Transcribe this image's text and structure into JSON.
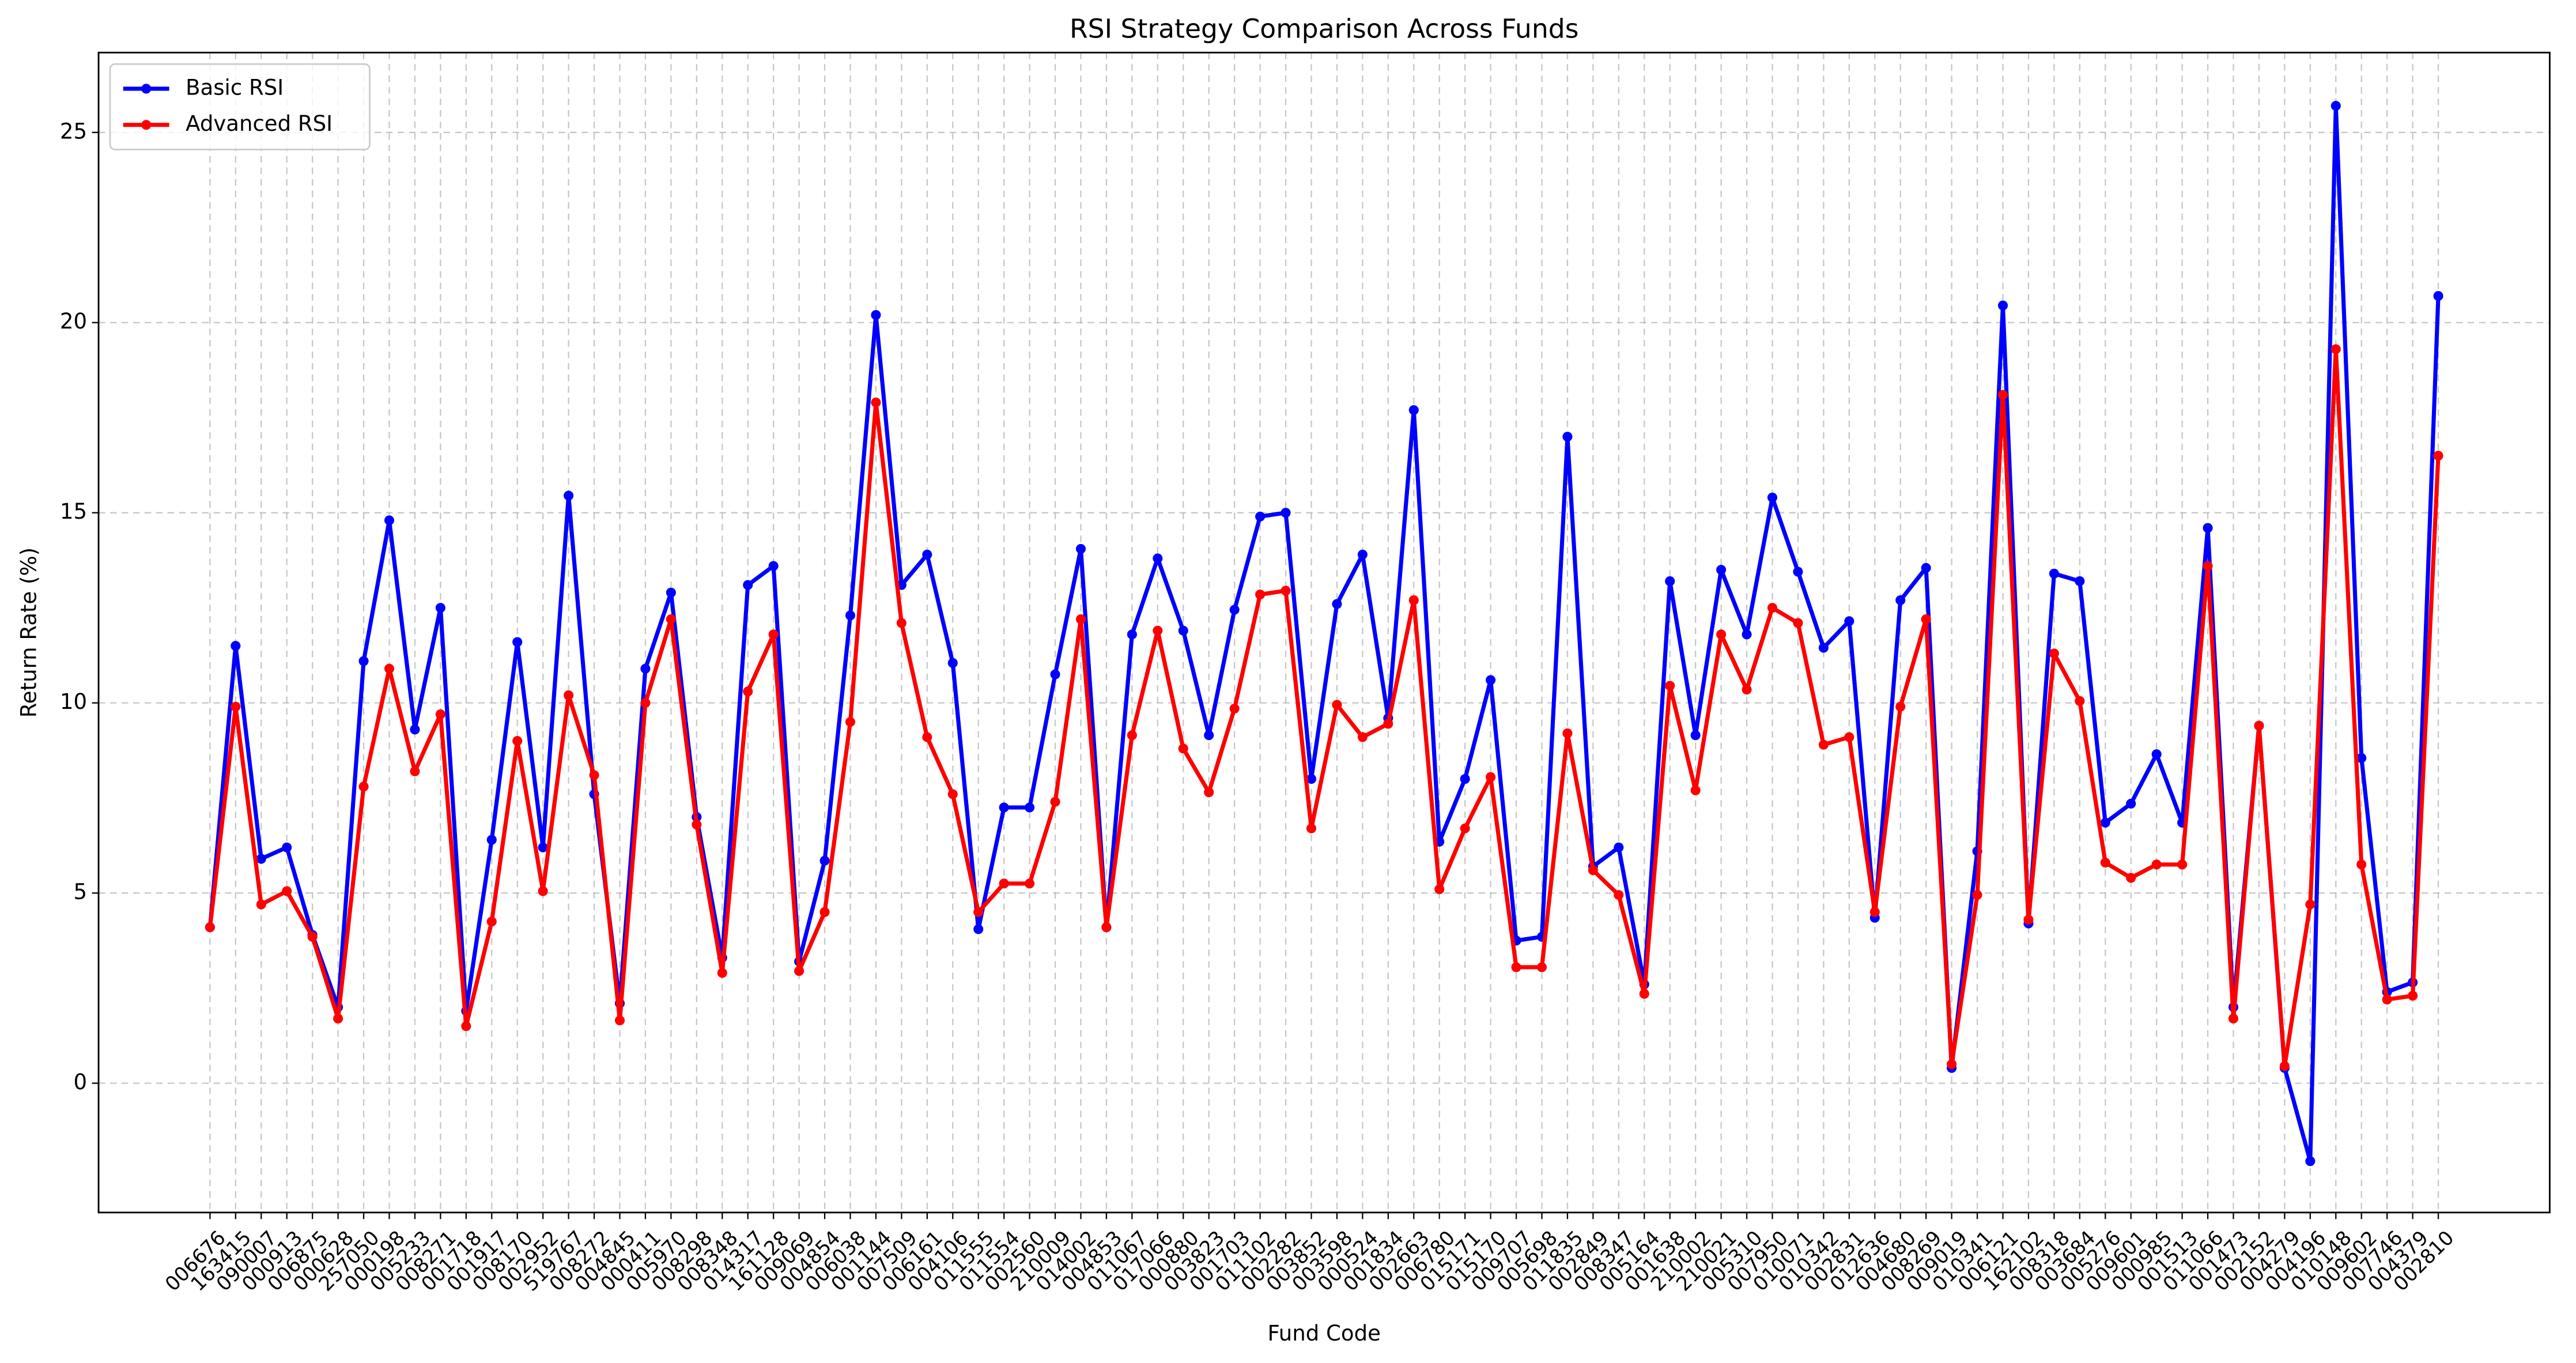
{
  "chart_data": {
    "type": "line",
    "title": "RSI Strategy Comparison Across Funds",
    "x_label": "Fund Code",
    "y_label": "Return Rate (%)",
    "categories": [
      "006676",
      "163415",
      "090007",
      "000913",
      "006875",
      "000628",
      "257050",
      "000198",
      "005233",
      "008271",
      "001718",
      "001917",
      "008170",
      "002952",
      "519767",
      "008272",
      "004845",
      "000411",
      "005970",
      "008298",
      "008348",
      "014317",
      "161128",
      "009069",
      "004854",
      "006038",
      "001144",
      "007509",
      "006161",
      "004106",
      "011555",
      "011554",
      "002560",
      "210009",
      "014002",
      "004853",
      "011067",
      "017066",
      "000880",
      "003823",
      "001703",
      "011102",
      "002282",
      "003852",
      "003598",
      "000524",
      "001834",
      "002663",
      "006780",
      "015171",
      "015170",
      "009707",
      "005698",
      "011835",
      "002849",
      "008347",
      "005164",
      "001638",
      "210002",
      "210021",
      "005310",
      "007950",
      "010071",
      "010342",
      "002831",
      "012636",
      "004680",
      "008269",
      "009019",
      "010341",
      "006121",
      "162102",
      "008318",
      "003684",
      "005276",
      "009601",
      "000985",
      "001513",
      "011066",
      "001473",
      "002152",
      "004279",
      "004196",
      "010148",
      "009602",
      "007746",
      "004379",
      "002810"
    ],
    "series": [
      {
        "name": "Basic RSI",
        "color": "#0000ff",
        "values": [
          4.1,
          11.5,
          5.9,
          6.2,
          3.9,
          2.0,
          11.1,
          14.8,
          9.3,
          12.5,
          1.9,
          6.4,
          11.6,
          6.2,
          15.45,
          7.6,
          2.1,
          10.9,
          12.9,
          7.0,
          3.3,
          13.1,
          13.6,
          3.2,
          5.85,
          12.3,
          20.2,
          13.1,
          13.9,
          11.05,
          4.05,
          7.25,
          7.25,
          10.75,
          14.05,
          4.1,
          11.8,
          13.8,
          11.9,
          9.15,
          12.45,
          14.9,
          15.0,
          8.0,
          12.6,
          13.9,
          9.6,
          17.7,
          6.35,
          8.0,
          10.6,
          3.75,
          3.85,
          17.0,
          5.7,
          6.2,
          2.6,
          13.2,
          9.15,
          13.5,
          11.8,
          15.4,
          13.45,
          11.45,
          12.15,
          4.35,
          12.7,
          13.55,
          0.4,
          6.1,
          20.45,
          4.2,
          13.4,
          13.2,
          6.85,
          7.35,
          8.65,
          6.85,
          14.6,
          2.0,
          9.4,
          0.4,
          -2.05,
          25.7,
          8.55,
          2.4,
          2.65,
          20.7
        ]
      },
      {
        "name": "Advanced RSI",
        "color": "#ff0000",
        "values": [
          4.1,
          9.9,
          4.7,
          5.05,
          3.85,
          1.7,
          7.8,
          10.9,
          8.2,
          9.7,
          1.5,
          4.25,
          9.0,
          5.05,
          10.2,
          8.1,
          1.65,
          10.0,
          12.2,
          6.8,
          2.9,
          10.3,
          11.8,
          2.95,
          4.5,
          9.5,
          17.9,
          12.1,
          9.1,
          7.6,
          4.5,
          5.25,
          5.25,
          7.4,
          12.2,
          4.1,
          9.15,
          11.9,
          8.8,
          7.65,
          9.85,
          12.85,
          12.95,
          6.7,
          9.95,
          9.1,
          9.45,
          12.7,
          5.1,
          6.7,
          8.05,
          3.05,
          3.05,
          9.2,
          5.6,
          4.95,
          2.35,
          10.45,
          7.7,
          11.8,
          10.35,
          12.5,
          12.1,
          8.9,
          9.1,
          4.5,
          9.9,
          12.2,
          0.5,
          4.95,
          18.1,
          4.3,
          11.3,
          10.05,
          5.8,
          5.4,
          5.75,
          5.75,
          13.6,
          1.7,
          9.4,
          0.45,
          4.7,
          19.3,
          5.75,
          2.2,
          2.3,
          16.5
        ]
      }
    ],
    "ylim": [
      -3.4,
      27.1
    ],
    "yticks": [
      0,
      5,
      10,
      15,
      20,
      25
    ],
    "grid": true,
    "legend": "upper left"
  }
}
